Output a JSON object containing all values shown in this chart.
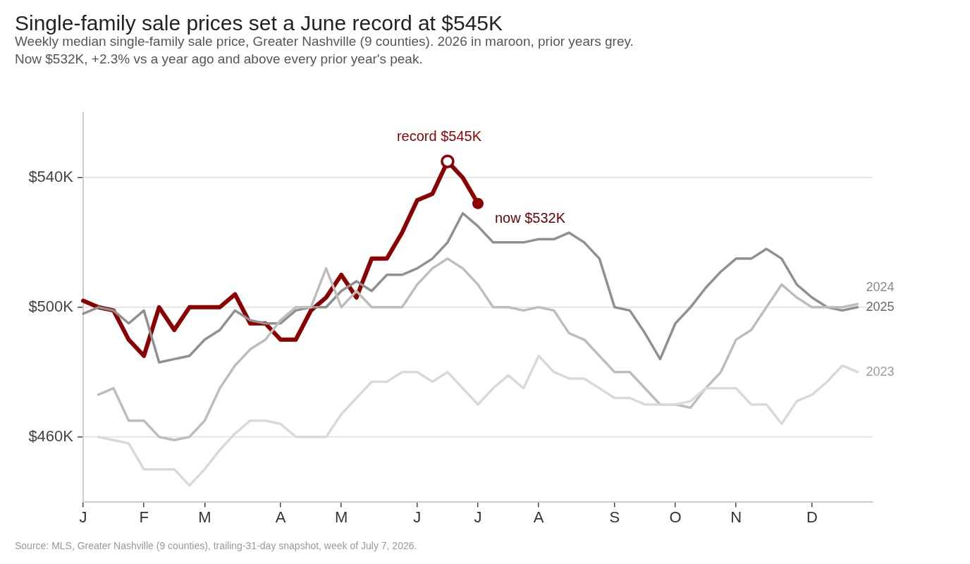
{
  "chart_data": {
    "type": "line",
    "title": "Single-family sale prices set a June record at $545K",
    "subtitle": "Weekly median single-family sale price, Greater Nashville (9 counties). 2026 in maroon, prior years grey.\nNow $532K, +2.3% vs a year ago and above every prior year's peak.",
    "categories": [
      "J",
      null,
      null,
      null,
      "F",
      null,
      null,
      null,
      "M",
      null,
      null,
      null,
      null,
      "A",
      null,
      null,
      null,
      "M",
      null,
      null,
      null,
      null,
      "J",
      null,
      null,
      null,
      "J",
      null,
      null,
      null,
      "A",
      null,
      null,
      null,
      null,
      "S",
      null,
      null,
      null,
      "O",
      null,
      null,
      null,
      "N",
      null,
      null,
      null,
      null,
      "D",
      null,
      null,
      null,
      null
    ],
    "ylim": [
      440,
      560
    ],
    "yticks": [
      {
        "value": 460,
        "label": "$460K"
      },
      {
        "value": 500,
        "label": "$500K"
      },
      {
        "value": 540,
        "label": "$540K"
      }
    ],
    "grid": "y",
    "marker": "none",
    "line_style": "solid",
    "series": [
      {
        "name": "2023",
        "color": "#d9d9d9",
        "values": [
          null,
          460,
          459,
          458,
          450,
          450,
          450,
          445,
          450,
          456,
          461,
          465,
          465,
          464,
          460,
          460,
          460,
          467,
          472,
          477,
          477,
          480,
          480,
          477,
          480,
          475,
          470,
          475,
          479,
          475,
          485,
          480,
          478,
          478,
          475,
          472,
          472,
          470,
          470,
          470,
          471,
          475,
          475,
          475,
          470,
          470,
          464,
          471,
          473,
          477,
          482,
          480,
          null
        ]
      },
      {
        "name": "2024",
        "color": "#bdbdbd",
        "values": [
          null,
          473,
          475,
          465,
          465,
          460,
          459,
          460,
          465,
          475,
          482,
          487,
          490,
          496,
          500,
          500,
          512,
          500,
          505,
          500,
          500,
          500,
          507,
          512,
          515,
          512,
          507,
          500,
          500,
          499,
          500,
          499,
          492,
          490,
          485,
          480,
          480,
          475,
          470,
          470,
          469,
          475,
          480,
          490,
          493,
          500,
          507,
          503,
          500,
          500,
          500,
          501,
          null
        ]
      },
      {
        "name": "2025",
        "color": "#909090",
        "values": [
          498,
          500,
          499,
          495,
          499,
          483,
          484,
          485,
          490,
          493,
          499,
          496,
          495,
          495,
          499,
          500,
          500,
          505,
          508,
          505,
          510,
          510,
          512,
          515,
          520,
          529,
          525,
          520,
          520,
          520,
          521,
          521,
          523,
          520,
          515,
          500,
          499,
          492,
          484,
          495,
          500,
          506,
          511,
          515,
          515,
          518,
          515,
          507,
          503,
          500,
          499,
          500,
          null
        ]
      },
      {
        "color": "#8b0000",
        "values": [
          502,
          500,
          499,
          490,
          485,
          500,
          493,
          500,
          500,
          500,
          504,
          495,
          495,
          490,
          490,
          499,
          503,
          510,
          503,
          515,
          515,
          523,
          533,
          535,
          545,
          540,
          532,
          null,
          null,
          null,
          null,
          null,
          null,
          null,
          null,
          null,
          null,
          null,
          null,
          null,
          null,
          null,
          null,
          null,
          null,
          null,
          null,
          null,
          null,
          null,
          null,
          null,
          null
        ]
      }
    ],
    "annotations": [
      {
        "text": "record $545K",
        "y": 545
      },
      "now $532K",
      "Source: MLS, Greater Nashville (9 counties), trailing-31-day snapshot, week of July 7, 2026."
    ]
  }
}
